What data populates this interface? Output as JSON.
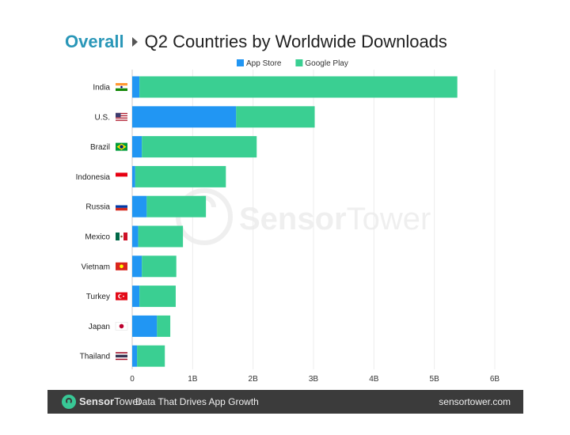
{
  "header": {
    "title_main": "Overall",
    "title_sub": "Q2 Countries by Worldwide Downloads"
  },
  "watermark": {
    "text_a": "Sensor",
    "text_b": "Tower"
  },
  "footer": {
    "brand_a": "Sensor",
    "brand_b": "Tower",
    "tagline": "Data That Drives App Growth",
    "website": "sensortower.com"
  },
  "colors": {
    "app_store": "#2196f3",
    "google_play": "#3acf92",
    "title_accent": "#2a97b8",
    "footer_bg": "#3b3b3b"
  },
  "chart_data": {
    "type": "bar",
    "orientation": "horizontal",
    "stacked": true,
    "title": "Q2 Countries by Worldwide Downloads",
    "categories": [
      "India",
      "U.S.",
      "Brazil",
      "Indonesia",
      "Russia",
      "Mexico",
      "Vietnam",
      "Turkey",
      "Japan",
      "Thailand"
    ],
    "flags": [
      "india-flag-icon",
      "us-flag-icon",
      "brazil-flag-icon",
      "indonesia-flag-icon",
      "russia-flag-icon",
      "mexico-flag-icon",
      "vietnam-flag-icon",
      "turkey-flag-icon",
      "japan-flag-icon",
      "thailand-flag-icon"
    ],
    "series": [
      {
        "name": "App Store",
        "color": "#2196f3",
        "values": [
          0.12,
          1.72,
          0.16,
          0.05,
          0.24,
          0.1,
          0.16,
          0.12,
          0.41,
          0.08
        ]
      },
      {
        "name": "Google Play",
        "color": "#3acf92",
        "values": [
          5.26,
          1.3,
          1.9,
          1.5,
          0.98,
          0.74,
          0.57,
          0.6,
          0.22,
          0.46
        ]
      }
    ],
    "xlim": [
      0,
      6
    ],
    "x_ticks": [
      0,
      1,
      2,
      3,
      4,
      5,
      6
    ],
    "x_tick_labels": [
      "0",
      "1B",
      "2B",
      "3B",
      "4B",
      "5B",
      "6B"
    ],
    "grid": true,
    "legend_position": "top-center"
  }
}
